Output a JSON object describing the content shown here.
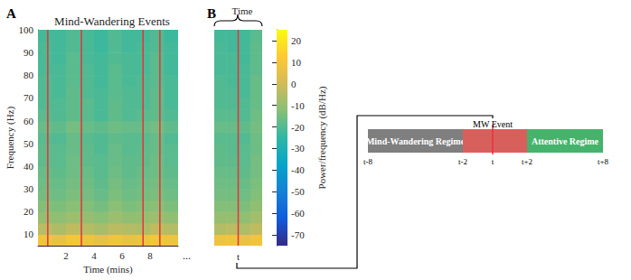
{
  "chart_data": [
    {
      "type": "heatmap",
      "panel": "A",
      "title": "Mind-Wandering Events",
      "x_label": "Time (mins)",
      "y_label": "Frequency (Hz)",
      "x": [
        0.5,
        1.5,
        2.5,
        3.5,
        4.5,
        5.5,
        6.5,
        7.5,
        8.5,
        9.5
      ],
      "y": [
        7.5,
        12.5,
        17.5,
        22.5,
        27.5,
        32.5,
        37.5,
        42.5,
        47.5,
        52.5,
        57.5,
        62.5,
        67.5,
        72.5,
        77.5,
        82.5,
        87.5,
        92.5,
        97.5
      ],
      "values": [
        [
          9,
          7,
          10,
          8,
          6,
          9,
          7,
          8,
          10,
          8
        ],
        [
          -4,
          -6,
          -3,
          -5,
          -7,
          -4,
          -5,
          -6,
          -3,
          -5
        ],
        [
          -10,
          -11,
          -9,
          -10,
          -12,
          -9,
          -11,
          -10,
          -9,
          -11
        ],
        [
          -13,
          -14,
          -12,
          -13,
          -15,
          -12,
          -14,
          -13,
          -12,
          -14
        ],
        [
          -15,
          -16,
          -14,
          -15,
          -17,
          -14,
          -16,
          -15,
          -14,
          -16
        ],
        [
          -16,
          -17,
          -15,
          -16,
          -18,
          -15,
          -17,
          -16,
          -15,
          -17
        ],
        [
          -17,
          -18,
          -16,
          -17,
          -19,
          -16,
          -18,
          -17,
          -16,
          -18
        ],
        [
          -18,
          -19,
          -16,
          -18,
          -19,
          -17,
          -18,
          -18,
          -16,
          -19
        ],
        [
          -18,
          -19,
          -17,
          -18,
          -20,
          -17,
          -19,
          -18,
          -17,
          -19
        ],
        [
          -19,
          -20,
          -17,
          -19,
          -20,
          -18,
          -19,
          -19,
          -17,
          -20
        ],
        [
          -17,
          -18,
          -15,
          -17,
          -18,
          -16,
          -17,
          -17,
          -15,
          -18
        ],
        [
          -19,
          -20,
          -18,
          -19,
          -21,
          -18,
          -20,
          -19,
          -18,
          -20
        ],
        [
          -20,
          -20,
          -18,
          -19,
          -21,
          -18,
          -20,
          -20,
          -18,
          -21
        ],
        [
          -20,
          -21,
          -18,
          -20,
          -21,
          -19,
          -20,
          -20,
          -18,
          -21
        ],
        [
          -20,
          -21,
          -19,
          -20,
          -22,
          -19,
          -21,
          -20,
          -19,
          -21
        ],
        [
          -21,
          -21,
          -19,
          -20,
          -22,
          -19,
          -21,
          -21,
          -19,
          -22
        ],
        [
          -21,
          -22,
          -19,
          -21,
          -22,
          -20,
          -21,
          -21,
          -19,
          -22
        ],
        [
          -21,
          -22,
          -20,
          -21,
          -23,
          -20,
          -22,
          -21,
          -20,
          -22
        ],
        [
          -22,
          -22,
          -20,
          -21,
          -23,
          -20,
          -22,
          -22,
          -20,
          -23
        ]
      ],
      "xlim": [
        0,
        10
      ],
      "xticks": [
        2,
        4,
        6,
        8
      ],
      "ylim": [
        5,
        100
      ],
      "yticks": [
        10,
        20,
        30,
        40,
        50,
        60,
        70,
        80,
        90,
        100
      ],
      "annotation": "...",
      "events": [
        0.7,
        3.1,
        7.5,
        8.7
      ],
      "event_color": "#e8323c"
    },
    {
      "type": "heatmap",
      "panel": "B",
      "title": "Time",
      "x": [
        -3,
        -1,
        1,
        3
      ],
      "y": [
        7.5,
        12.5,
        17.5,
        22.5,
        27.5,
        32.5,
        37.5,
        42.5,
        47.5,
        52.5,
        57.5,
        62.5,
        67.5,
        72.5,
        77.5,
        82.5,
        87.5,
        92.5,
        97.5
      ],
      "values": [
        [
          8,
          9,
          7,
          9
        ],
        [
          -5,
          -4,
          -6,
          -3
        ],
        [
          -10,
          -10,
          -11,
          -8
        ],
        [
          -13,
          -13,
          -14,
          -11
        ],
        [
          -15,
          -15,
          -16,
          -13
        ],
        [
          -16,
          -16,
          -17,
          -14
        ],
        [
          -17,
          -17,
          -18,
          -15
        ],
        [
          -18,
          -18,
          -19,
          -15
        ],
        [
          -18,
          -19,
          -19,
          -16
        ],
        [
          -19,
          -19,
          -20,
          -16
        ],
        [
          -17,
          -17,
          -18,
          -15
        ],
        [
          -19,
          -19,
          -20,
          -16
        ],
        [
          -20,
          -20,
          -20,
          -17
        ],
        [
          -20,
          -20,
          -21,
          -17
        ],
        [
          -20,
          -21,
          -21,
          -17
        ],
        [
          -21,
          -21,
          -21,
          -18
        ],
        [
          -21,
          -21,
          -22,
          -18
        ],
        [
          -21,
          -22,
          -22,
          -18
        ],
        [
          -22,
          -22,
          -22,
          -19
        ]
      ],
      "xlim": [
        -4,
        4
      ],
      "ylim": [
        5,
        100
      ],
      "tick_labels": false,
      "events": [
        0
      ],
      "event_labels": [
        "t"
      ],
      "event_color": "#e8323c",
      "colorbar": {
        "label": "Power/frequency (dB/Hz)",
        "range": [
          -75,
          25
        ],
        "ticks": [
          -70,
          -60,
          -50,
          -40,
          -30,
          -20,
          -10,
          0,
          10,
          20
        ],
        "colors": [
          "#352a87",
          "#0f5cdd",
          "#1481d6",
          "#06a4ca",
          "#2eb7a4",
          "#87bf77",
          "#d1bb59",
          "#fec832",
          "#f9fb0e"
        ]
      }
    }
  ],
  "diagram": {
    "regimes": [
      {
        "label": "Mind-Wandering Regime",
        "color": "#7f7f7f"
      },
      {
        "color": "#d8605c"
      },
      {
        "label": "Attentive Regime",
        "color": "#45b36b"
      }
    ],
    "event": {
      "label": "MW Event",
      "color": "#e8323c"
    },
    "ticks": [
      "t-8",
      "t-2",
      "t",
      "t+2",
      "t+8"
    ]
  }
}
